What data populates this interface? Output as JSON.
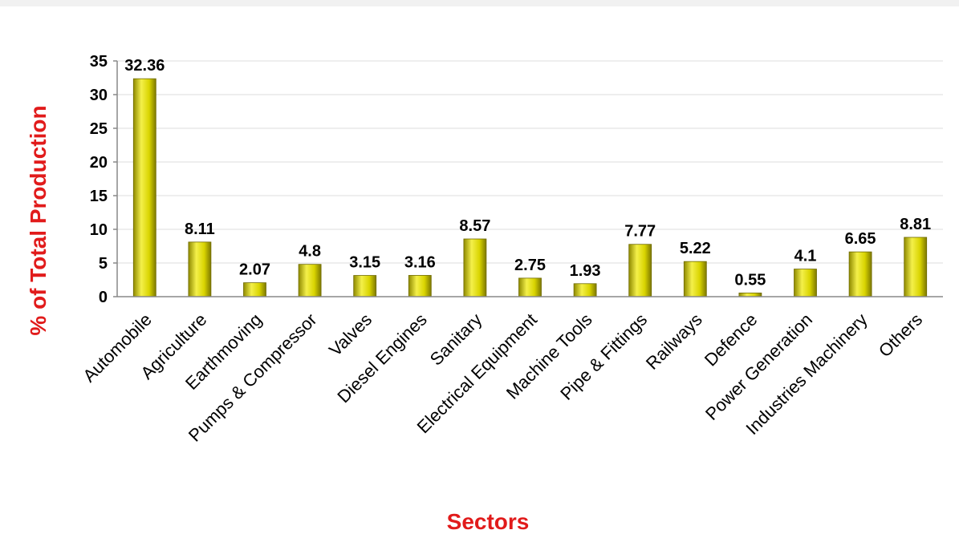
{
  "chart_data": {
    "type": "bar",
    "xlabel": "Sectors",
    "ylabel": "% of Total Production",
    "ylim": [
      0,
      35
    ],
    "yticks": [
      0,
      5,
      10,
      15,
      20,
      25,
      30,
      35
    ],
    "grid": true,
    "bar_color": "#e0dc1c",
    "axis_title_color": "#e11b1b",
    "categories": [
      "Automobile",
      "Agriculture",
      "Earthmoving",
      "Pumps & Compressor",
      "Valves",
      "Diesel Engines",
      "Sanitary",
      "Electrical Equipment",
      "Machine Tools",
      "Pipe & Fittings",
      "Railways",
      "Defence",
      "Power Generation",
      "Industries Machinery",
      "Others"
    ],
    "values": [
      32.36,
      8.11,
      2.07,
      4.8,
      3.15,
      3.16,
      8.57,
      2.75,
      1.93,
      7.77,
      5.22,
      0.55,
      4.1,
      6.65,
      8.81
    ],
    "value_labels": [
      "32.36",
      "8.11",
      "2.07",
      "4.8",
      "3.15",
      "3.16",
      "8.57",
      "2.75",
      "1.93",
      "7.77",
      "5.22",
      "0.55",
      "4.1",
      "6.65",
      "8.81"
    ]
  }
}
